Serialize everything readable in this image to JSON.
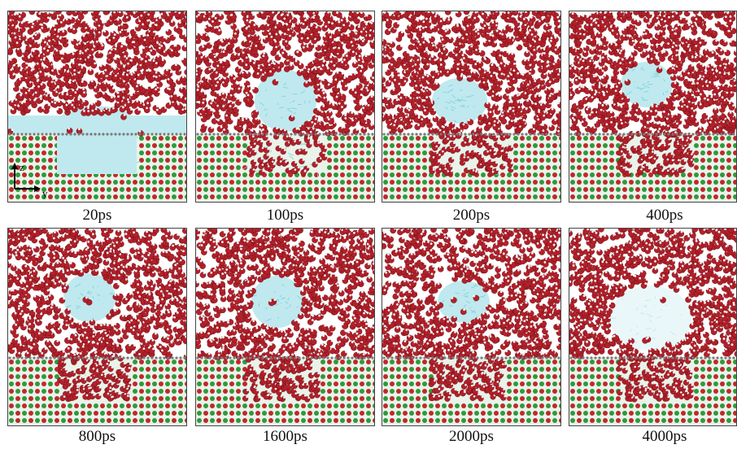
{
  "panels": [
    {
      "label": "20ps",
      "cavity_fill": 1.0,
      "bubble": "none"
    },
    {
      "label": "100ps",
      "cavity_fill": 0.45,
      "bubble": "rising"
    },
    {
      "label": "200ps",
      "cavity_fill": 0.2,
      "bubble": "detaching"
    },
    {
      "label": "400ps",
      "cavity_fill": 0.1,
      "bubble": "detached"
    },
    {
      "label": "800ps",
      "cavity_fill": 0.1,
      "bubble": "detached"
    },
    {
      "label": "1600ps",
      "cavity_fill": 0.0,
      "bubble": "detached"
    },
    {
      "label": "2000ps",
      "cavity_fill": 0.0,
      "bubble": "detached"
    },
    {
      "label": "4000ps",
      "cavity_fill": 0.0,
      "bubble": "dissolving"
    }
  ],
  "axes": {
    "vertical": "z",
    "horizontal": "y"
  },
  "colors": {
    "water_oxygen": "#b3202a",
    "water_hydrogen": "#f2f2f2",
    "gas": "#bfe9ef",
    "gas_lines": "#7ccfd9",
    "substrate_green": "#2f9a3a",
    "substrate_red": "#c1272d"
  }
}
